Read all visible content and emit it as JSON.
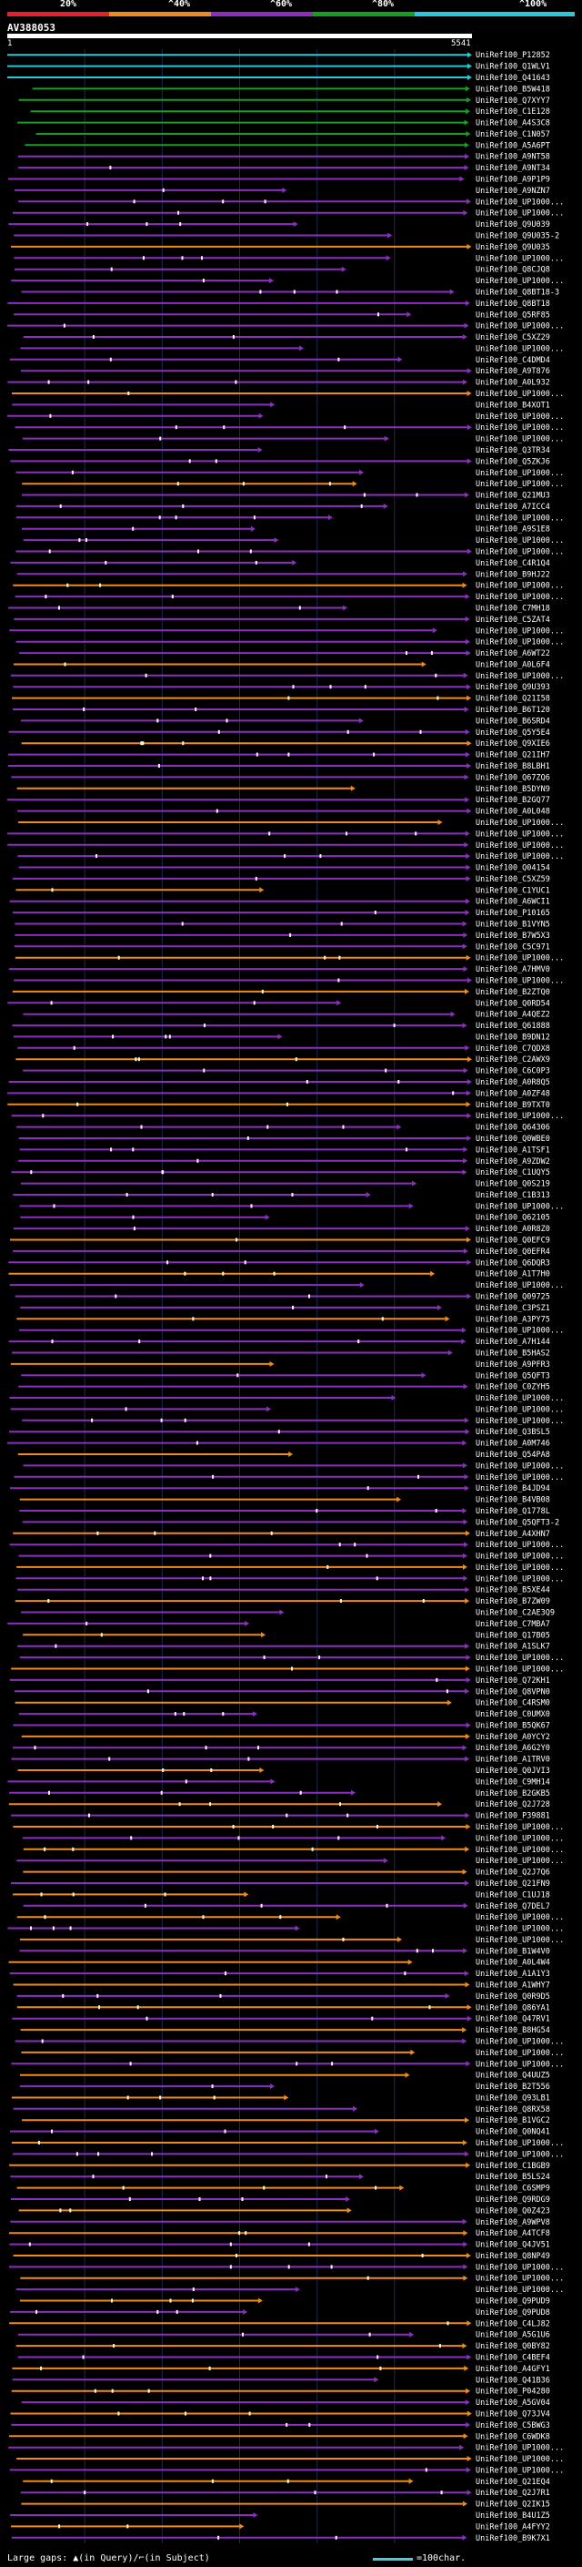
{
  "legend": {
    "labels": [
      "20%",
      "^40%",
      "^60%",
      "^80%",
      "^100%"
    ],
    "colors": [
      "#e8202a",
      "#f08a1c",
      "#8a2fbf",
      "#16a020",
      "#28c8d8"
    ]
  },
  "query": {
    "name": "AV388053",
    "start": "1",
    "end": "5541"
  },
  "footer": {
    "text": "Large gaps: ▲(in Query)/⌐(in Subject)",
    "scale_text": "=100char."
  },
  "hits": [
    {
      "label": "UniRef100_P12852",
      "color": "#28c8d8"
    },
    {
      "label": "UniRef100_Q1WLV1",
      "color": "#28c8d8"
    },
    {
      "label": "UniRef100_Q41643",
      "color": "#28c8d8"
    },
    {
      "label": "UniRef100_B5W418",
      "color": "#16a020"
    },
    {
      "label": "UniRef100_Q7XYY7",
      "color": "#16a020"
    },
    {
      "label": "UniRef100_C1E128",
      "color": "#16a020"
    },
    {
      "label": "UniRef100_A4S3C8",
      "color": "#16a020"
    },
    {
      "label": "UniRef100_C1N057",
      "color": "#16a020"
    },
    {
      "label": "UniRef100_A5A6PT",
      "color": "#16a020"
    },
    {
      "label": "UniRef100_A9NT58",
      "color": "#8a2fbf"
    },
    {
      "label": "UniRef100_A9NT34",
      "color": "#8a2fbf"
    },
    {
      "label": "UniRef100_A9P1P9",
      "color": "#8a2fbf"
    },
    {
      "label": "UniRef100_A9NZN7",
      "color": "#8a2fbf"
    },
    {
      "label": "UniRef100_UP1000...",
      "color": "#8a2fbf"
    },
    {
      "label": "UniRef100_UP1000...",
      "color": "#8a2fbf"
    },
    {
      "label": "UniRef100_Q9U039",
      "color": "#8a2fbf"
    },
    {
      "label": "UniRef100_Q9U035-2",
      "color": "#8a2fbf"
    },
    {
      "label": "UniRef100_Q9U035",
      "color": "#f08a1c"
    },
    {
      "label": "UniRef100_UP1000...",
      "color": "#8a2fbf"
    },
    {
      "label": "UniRef100_Q8CJQ8",
      "color": "#8a2fbf"
    },
    {
      "label": "UniRef100_UP1000...",
      "color": "#8a2fbf"
    },
    {
      "label": "UniRef100_Q8BT18-3",
      "color": "#8a2fbf"
    },
    {
      "label": "UniRef100_Q8BT18",
      "color": "#8a2fbf"
    },
    {
      "label": "UniRef100_Q5RF85",
      "color": "#8a2fbf"
    },
    {
      "label": "UniRef100_UP1000...",
      "color": "#8a2fbf"
    },
    {
      "label": "UniRef100_C5XZ29",
      "color": "#8a2fbf"
    },
    {
      "label": "UniRef100_UP1000...",
      "color": "#8a2fbf"
    },
    {
      "label": "UniRef100_C4DMD4",
      "color": "#8a2fbf"
    },
    {
      "label": "UniRef100_A9T876",
      "color": "#8a2fbf"
    },
    {
      "label": "UniRef100_A0L932",
      "color": "#8a2fbf"
    },
    {
      "label": "UniRef100_UP1000...",
      "color": "#f08a1c"
    },
    {
      "label": "UniRef100_B4XOT1",
      "color": "#8a2fbf"
    },
    {
      "label": "UniRef100_UP1000...",
      "color": "#8a2fbf"
    },
    {
      "label": "UniRef100_UP1000...",
      "color": "#8a2fbf"
    },
    {
      "label": "UniRef100_UP1000...",
      "color": "#8a2fbf"
    },
    {
      "label": "UniRef100_Q3TR34",
      "color": "#8a2fbf"
    },
    {
      "label": "UniRef100_Q5ZKJ6",
      "color": "#8a2fbf"
    },
    {
      "label": "UniRef100_UP1000...",
      "color": "#8a2fbf"
    },
    {
      "label": "UniRef100_UP1000...",
      "color": "#f08a1c"
    },
    {
      "label": "UniRef100_Q21MU3",
      "color": "#8a2fbf"
    },
    {
      "label": "UniRef100_A7ICC4",
      "color": "#8a2fbf"
    },
    {
      "label": "UniRef100_UP1000...",
      "color": "#8a2fbf"
    },
    {
      "label": "UniRef100_A9S1E8",
      "color": "#8a2fbf"
    },
    {
      "label": "UniRef100_UP1000...",
      "color": "#8a2fbf"
    },
    {
      "label": "UniRef100_UP1000...",
      "color": "#8a2fbf"
    },
    {
      "label": "UniRef100_C4R1Q4",
      "color": "#8a2fbf"
    },
    {
      "label": "UniRef100_B9HJ22",
      "color": "#8a2fbf"
    },
    {
      "label": "UniRef100_UP1000...",
      "color": "#f08a1c"
    },
    {
      "label": "UniRef100_UP1000...",
      "color": "#8a2fbf"
    },
    {
      "label": "UniRef100_C7MH18",
      "color": "#8a2fbf"
    },
    {
      "label": "UniRef100_C5ZAT4",
      "color": "#8a2fbf"
    },
    {
      "label": "UniRef100_UP1000...",
      "color": "#8a2fbf"
    },
    {
      "label": "UniRef100_UP1000...",
      "color": "#8a2fbf"
    },
    {
      "label": "UniRef100_A6WT22",
      "color": "#8a2fbf"
    },
    {
      "label": "UniRef100_A0L6F4",
      "color": "#f08a1c"
    },
    {
      "label": "UniRef100_UP1000...",
      "color": "#8a2fbf"
    },
    {
      "label": "UniRef100_Q9U393",
      "color": "#8a2fbf"
    },
    {
      "label": "UniRef100_Q21I58",
      "color": "#f08a1c"
    },
    {
      "label": "UniRef100_B6T120",
      "color": "#8a2fbf"
    },
    {
      "label": "UniRef100_B6SRD4",
      "color": "#8a2fbf"
    },
    {
      "label": "UniRef100_Q5Y5E4",
      "color": "#8a2fbf"
    },
    {
      "label": "UniRef100_Q9XIE6",
      "color": "#f08a1c"
    },
    {
      "label": "UniRef100_Q21IH7",
      "color": "#8a2fbf"
    },
    {
      "label": "UniRef100_B8LBH1",
      "color": "#8a2fbf"
    },
    {
      "label": "UniRef100_Q67ZQ6",
      "color": "#8a2fbf"
    },
    {
      "label": "UniRef100_B5DYN9",
      "color": "#f08a1c"
    },
    {
      "label": "UniRef100_B2GQ77",
      "color": "#8a2fbf"
    },
    {
      "label": "UniRef100_A0L048",
      "color": "#8a2fbf"
    },
    {
      "label": "UniRef100_UP1000...",
      "color": "#f08a1c"
    },
    {
      "label": "UniRef100_UP1000...",
      "color": "#8a2fbf"
    },
    {
      "label": "UniRef100_UP1000...",
      "color": "#8a2fbf"
    },
    {
      "label": "UniRef100_UP1000...",
      "color": "#8a2fbf"
    },
    {
      "label": "UniRef100_Q04154",
      "color": "#8a2fbf"
    },
    {
      "label": "UniRef100_C5XZ59",
      "color": "#8a2fbf"
    },
    {
      "label": "UniRef100_C1YUC1",
      "color": "#f08a1c"
    },
    {
      "label": "UniRef100_A6WCI1",
      "color": "#8a2fbf"
    },
    {
      "label": "UniRef100_P10165",
      "color": "#8a2fbf"
    },
    {
      "label": "UniRef100_B1VYN5",
      "color": "#8a2fbf"
    },
    {
      "label": "UniRef100_B7W5X3",
      "color": "#8a2fbf"
    },
    {
      "label": "UniRef100_C5C971",
      "color": "#8a2fbf"
    },
    {
      "label": "UniRef100_UP1000...",
      "color": "#f08a1c"
    },
    {
      "label": "UniRef100_A7HMV0",
      "color": "#8a2fbf"
    },
    {
      "label": "UniRef100_UP1000...",
      "color": "#8a2fbf"
    },
    {
      "label": "UniRef100_B2ZTQ0",
      "color": "#f08a1c"
    },
    {
      "label": "UniRef100_Q0RD54",
      "color": "#8a2fbf"
    },
    {
      "label": "UniRef100_A4QEZ2",
      "color": "#8a2fbf"
    },
    {
      "label": "UniRef100_Q61888",
      "color": "#8a2fbf"
    },
    {
      "label": "UniRef100_B9DN12",
      "color": "#8a2fbf"
    },
    {
      "label": "UniRef100_C7QDX8",
      "color": "#8a2fbf"
    },
    {
      "label": "UniRef100_C2AWX9",
      "color": "#f08a1c"
    },
    {
      "label": "UniRef100_C6C0P3",
      "color": "#8a2fbf"
    },
    {
      "label": "UniRef100_A0R8Q5",
      "color": "#8a2fbf"
    },
    {
      "label": "UniRef100_A0ZF48",
      "color": "#8a2fbf"
    },
    {
      "label": "UniRef100_B9TXT0",
      "color": "#f08a1c"
    },
    {
      "label": "UniRef100_UP1000...",
      "color": "#8a2fbf"
    },
    {
      "label": "UniRef100_Q64306",
      "color": "#8a2fbf"
    },
    {
      "label": "UniRef100_Q0WBE0",
      "color": "#8a2fbf"
    },
    {
      "label": "UniRef100_A1TSF1",
      "color": "#8a2fbf"
    },
    {
      "label": "UniRef100_A9ZDW2",
      "color": "#8a2fbf"
    },
    {
      "label": "UniRef100_C1UQY5",
      "color": "#8a2fbf"
    },
    {
      "label": "UniRef100_Q0S219",
      "color": "#8a2fbf"
    },
    {
      "label": "UniRef100_C1B313",
      "color": "#8a2fbf"
    },
    {
      "label": "UniRef100_UP1000...",
      "color": "#8a2fbf"
    },
    {
      "label": "UniRef100_Q62105",
      "color": "#8a2fbf"
    },
    {
      "label": "UniRef100_A0R8Z0",
      "color": "#8a2fbf"
    },
    {
      "label": "UniRef100_Q0EFC9",
      "color": "#f08a1c"
    },
    {
      "label": "UniRef100_Q0EFR4",
      "color": "#8a2fbf"
    },
    {
      "label": "UniRef100_Q6DQR3",
      "color": "#8a2fbf"
    },
    {
      "label": "UniRef100_A1T7H0",
      "color": "#f08a1c"
    },
    {
      "label": "UniRef100_UP1000...",
      "color": "#8a2fbf"
    },
    {
      "label": "UniRef100_Q09725",
      "color": "#8a2fbf"
    },
    {
      "label": "UniRef100_C3PSZ1",
      "color": "#8a2fbf"
    },
    {
      "label": "UniRef100_A3PY75",
      "color": "#f08a1c"
    },
    {
      "label": "UniRef100_UP1000...",
      "color": "#8a2fbf"
    },
    {
      "label": "UniRef100_A7H144",
      "color": "#8a2fbf"
    },
    {
      "label": "UniRef100_B5HAS2",
      "color": "#8a2fbf"
    },
    {
      "label": "UniRef100_A9PFR3",
      "color": "#f08a1c"
    },
    {
      "label": "UniRef100_Q5QFT3",
      "color": "#8a2fbf"
    },
    {
      "label": "UniRef100_C0ZYH5",
      "color": "#8a2fbf"
    },
    {
      "label": "UniRef100_UP1000...",
      "color": "#8a2fbf"
    },
    {
      "label": "UniRef100_UP1000...",
      "color": "#8a2fbf"
    },
    {
      "label": "UniRef100_UP1000...",
      "color": "#8a2fbf"
    },
    {
      "label": "UniRef100_Q3BSL5",
      "color": "#8a2fbf"
    },
    {
      "label": "UniRef100_A0M746",
      "color": "#8a2fbf"
    },
    {
      "label": "UniRef100_Q54PA8",
      "color": "#f08a1c"
    },
    {
      "label": "UniRef100_UP1000...",
      "color": "#8a2fbf"
    },
    {
      "label": "UniRef100_UP1000...",
      "color": "#8a2fbf"
    },
    {
      "label": "UniRef100_B4JD94",
      "color": "#8a2fbf"
    },
    {
      "label": "UniRef100_B4VB08",
      "color": "#f08a1c"
    },
    {
      "label": "UniRef100_Q1778L",
      "color": "#8a2fbf"
    },
    {
      "label": "UniRef100_Q5QFT3-2",
      "color": "#8a2fbf"
    },
    {
      "label": "UniRef100_A4XHN7",
      "color": "#f08a1c"
    },
    {
      "label": "UniRef100_UP1000...",
      "color": "#8a2fbf"
    },
    {
      "label": "UniRef100_UP1000...",
      "color": "#8a2fbf"
    },
    {
      "label": "UniRef100_UP1000...",
      "color": "#f08a1c"
    },
    {
      "label": "UniRef100_UP1000...",
      "color": "#8a2fbf"
    },
    {
      "label": "UniRef100_B5XE44",
      "color": "#8a2fbf"
    },
    {
      "label": "UniRef100_B7ZW09",
      "color": "#f08a1c"
    },
    {
      "label": "UniRef100_C2AE3Q9",
      "color": "#8a2fbf"
    },
    {
      "label": "UniRef100_C7MBA7",
      "color": "#8a2fbf"
    },
    {
      "label": "UniRef100_Q17B05",
      "color": "#f08a1c"
    },
    {
      "label": "UniRef100_A1SLK7",
      "color": "#8a2fbf"
    },
    {
      "label": "UniRef100_UP1000...",
      "color": "#8a2fbf"
    },
    {
      "label": "UniRef100_UP1000...",
      "color": "#f08a1c"
    },
    {
      "label": "UniRef100_Q72KH1",
      "color": "#8a2fbf"
    },
    {
      "label": "UniRef100_Q8VPN0",
      "color": "#8a2fbf"
    },
    {
      "label": "UniRef100_C4RSM0",
      "color": "#f08a1c"
    },
    {
      "label": "UniRef100_C0UMX0",
      "color": "#8a2fbf"
    },
    {
      "label": "UniRef100_B5QK67",
      "color": "#8a2fbf"
    },
    {
      "label": "UniRef100_A0YCY2",
      "color": "#f08a1c"
    },
    {
      "label": "UniRef100_A6G2Y0",
      "color": "#8a2fbf"
    },
    {
      "label": "UniRef100_A1TRV0",
      "color": "#8a2fbf"
    },
    {
      "label": "UniRef100_Q0JVI3",
      "color": "#f08a1c"
    },
    {
      "label": "UniRef100_C9MH14",
      "color": "#8a2fbf"
    },
    {
      "label": "UniRef100_B2GKB5",
      "color": "#8a2fbf"
    },
    {
      "label": "UniRef100_Q2J728",
      "color": "#f08a1c"
    },
    {
      "label": "UniRef100_P39881",
      "color": "#8a2fbf"
    },
    {
      "label": "UniRef100_UP1000...",
      "color": "#f08a1c"
    },
    {
      "label": "UniRef100_UP1000...",
      "color": "#8a2fbf"
    },
    {
      "label": "UniRef100_UP1000...",
      "color": "#f08a1c"
    },
    {
      "label": "UniRef100_UP1000...",
      "color": "#8a2fbf"
    },
    {
      "label": "UniRef100_Q2J7Q6",
      "color": "#f08a1c"
    },
    {
      "label": "UniRef100_Q21FN9",
      "color": "#8a2fbf"
    },
    {
      "label": "UniRef100_C1UJ18",
      "color": "#f08a1c"
    },
    {
      "label": "UniRef100_Q7DEL7",
      "color": "#8a2fbf"
    },
    {
      "label": "UniRef100_UP1000...",
      "color": "#f08a1c"
    },
    {
      "label": "UniRef100_UP1000...",
      "color": "#8a2fbf"
    },
    {
      "label": "UniRef100_UP1000...",
      "color": "#f08a1c"
    },
    {
      "label": "UniRef100_B1W4V0",
      "color": "#8a2fbf"
    },
    {
      "label": "UniRef100_A0L4W4",
      "color": "#f08a1c"
    },
    {
      "label": "UniRef100_A1A1Y3",
      "color": "#8a2fbf"
    },
    {
      "label": "UniRef100_A1WHY7",
      "color": "#f08a1c"
    },
    {
      "label": "UniRef100_Q0R9D5",
      "color": "#8a2fbf"
    },
    {
      "label": "UniRef100_Q86YA1",
      "color": "#f08a1c"
    },
    {
      "label": "UniRef100_Q47RV1",
      "color": "#8a2fbf"
    },
    {
      "label": "UniRef100_B8HG54",
      "color": "#f08a1c"
    },
    {
      "label": "UniRef100_UP1000...",
      "color": "#8a2fbf"
    },
    {
      "label": "UniRef100_UP1000...",
      "color": "#f08a1c"
    },
    {
      "label": "UniRef100_UP1000...",
      "color": "#8a2fbf"
    },
    {
      "label": "UniRef100_Q4UUZ5",
      "color": "#f08a1c"
    },
    {
      "label": "UniRef100_B2T556",
      "color": "#8a2fbf"
    },
    {
      "label": "UniRef100_Q93LB1",
      "color": "#f08a1c"
    },
    {
      "label": "UniRef100_Q8RX58",
      "color": "#8a2fbf"
    },
    {
      "label": "UniRef100_B1VGC2",
      "color": "#f08a1c"
    },
    {
      "label": "UniRef100_Q0NQ41",
      "color": "#8a2fbf"
    },
    {
      "label": "UniRef100_UP1000...",
      "color": "#f08a1c"
    },
    {
      "label": "UniRef100_UP1000...",
      "color": "#8a2fbf"
    },
    {
      "label": "UniRef100_C1BGB9",
      "color": "#f08a1c"
    },
    {
      "label": "UniRef100_B5LS24",
      "color": "#8a2fbf"
    },
    {
      "label": "UniRef100_C6SMP9",
      "color": "#f08a1c"
    },
    {
      "label": "UniRef100_Q9RDG9",
      "color": "#8a2fbf"
    },
    {
      "label": "UniRef100_Q0Z423",
      "color": "#f08a1c"
    },
    {
      "label": "UniRef100_A9WPV8",
      "color": "#8a2fbf"
    },
    {
      "label": "UniRef100_A4TCF8",
      "color": "#f08a1c"
    },
    {
      "label": "UniRef100_Q4JV51",
      "color": "#8a2fbf"
    },
    {
      "label": "UniRef100_Q8NP49",
      "color": "#f08a1c"
    },
    {
      "label": "UniRef100_UP1000...",
      "color": "#8a2fbf"
    },
    {
      "label": "UniRef100_UP1000...",
      "color": "#f08a1c"
    },
    {
      "label": "UniRef100_UP1000...",
      "color": "#8a2fbf"
    },
    {
      "label": "UniRef100_Q9PUD9",
      "color": "#f08a1c"
    },
    {
      "label": "UniRef100_Q9PUD8",
      "color": "#8a2fbf"
    },
    {
      "label": "UniRef100_C4LJ82",
      "color": "#f08a1c"
    },
    {
      "label": "UniRef100_A5G1U6",
      "color": "#8a2fbf"
    },
    {
      "label": "UniRef100_Q0BY82",
      "color": "#f08a1c"
    },
    {
      "label": "UniRef100_C4BEF4",
      "color": "#8a2fbf"
    },
    {
      "label": "UniRef100_A4GFY1",
      "color": "#f08a1c"
    },
    {
      "label": "UniRef100_Q41B36",
      "color": "#8a2fbf"
    },
    {
      "label": "UniRef100_P04280",
      "color": "#f08a1c"
    },
    {
      "label": "UniRef100_A5GV04",
      "color": "#8a2fbf"
    },
    {
      "label": "UniRef100_Q73JV4",
      "color": "#f08a1c"
    },
    {
      "label": "UniRef100_C5BWG3",
      "color": "#8a2fbf"
    },
    {
      "label": "UniRef100_C6WDK8",
      "color": "#f08a1c"
    },
    {
      "label": "UniRef100_UP1000...",
      "color": "#8a2fbf"
    },
    {
      "label": "UniRef100_UP1000...",
      "color": "#f08a1c"
    },
    {
      "label": "UniRef100_UP1000...",
      "color": "#8a2fbf"
    },
    {
      "label": "UniRef100_Q21EQ4",
      "color": "#f08a1c"
    },
    {
      "label": "UniRef100_Q2J7R1",
      "color": "#8a2fbf"
    },
    {
      "label": "UniRef100_Q2IK15",
      "color": "#f08a1c"
    },
    {
      "label": "UniRef100_B4U1Z5",
      "color": "#8a2fbf"
    },
    {
      "label": "UniRef100_A4FYY2",
      "color": "#f08a1c"
    },
    {
      "label": "UniRef100_B9K7X1",
      "color": "#8a2fbf"
    }
  ]
}
